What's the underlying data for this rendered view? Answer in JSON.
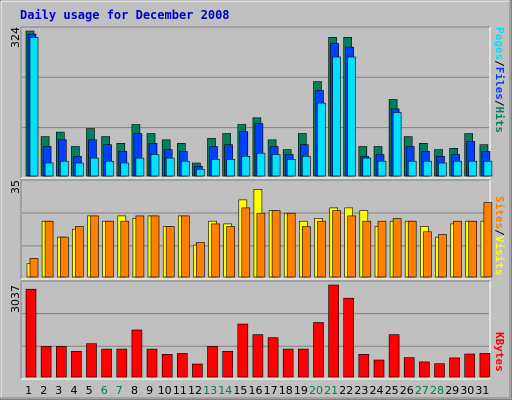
{
  "title": "Daily usage for December 2008",
  "colors": {
    "hits": "#00805c",
    "files": "#0040ff",
    "pages": "#00e0ff",
    "visits": "#ffff00",
    "sites": "#ff8000",
    "kbytes": "#ff0000",
    "weekday_label": "#000000",
    "weekend_label": "#008040",
    "panel_bg": "#c0c0c0",
    "frame_bg": "#c0c0c0"
  },
  "legend_top": {
    "pages": "Pages",
    "sep1": "/",
    "files": "Files",
    "sep2": "/",
    "hits": "Hits"
  },
  "legend_mid": {
    "sites": "Sites",
    "sep": "/",
    "visits": "Visits"
  },
  "legend_bot": {
    "kbytes": "KBytes"
  },
  "ymax_labels": {
    "top": "324",
    "mid": "35",
    "bot": "3037"
  },
  "chart_data": {
    "type": "bar",
    "categories": [
      "1",
      "2",
      "3",
      "4",
      "5",
      "6",
      "7",
      "8",
      "9",
      "10",
      "11",
      "12",
      "13",
      "14",
      "15",
      "16",
      "17",
      "18",
      "19",
      "20",
      "21",
      "22",
      "23",
      "24",
      "25",
      "26",
      "27",
      "28",
      "29",
      "30",
      "31"
    ],
    "weekend_days": [
      "6",
      "7",
      "13",
      "14",
      "20",
      "21",
      "27",
      "28"
    ],
    "panels": [
      {
        "name": "top",
        "ymax": 324,
        "series": [
          {
            "name": "Hits",
            "values": [
              324,
              88,
              98,
              66,
              106,
              88,
              73,
              115,
              95,
              81,
              73,
              29,
              84,
              95,
              115,
              130,
              81,
              59,
              95,
              211,
              310,
              310,
              66,
              66,
              171,
              88,
              73,
              59,
              62,
              95,
              70
            ]
          },
          {
            "name": "Files",
            "values": [
              317,
              66,
              81,
              44,
              81,
              70,
              55,
              95,
              73,
              59,
              55,
              22,
              66,
              70,
              99,
              117,
              66,
              48,
              70,
              191,
              296,
              288,
              44,
              48,
              150,
              66,
              55,
              44,
              48,
              77,
              55
            ]
          },
          {
            "name": "Pages",
            "values": [
              310,
              29,
              33,
              29,
              40,
              33,
              29,
              40,
              48,
              40,
              33,
              15,
              37,
              37,
              44,
              51,
              48,
              37,
              44,
              163,
              266,
              266,
              40,
              33,
              142,
              33,
              33,
              29,
              33,
              33,
              33
            ]
          }
        ]
      },
      {
        "name": "mid",
        "ymax": 35,
        "series": [
          {
            "name": "Visits",
            "values": [
              5,
              21,
              15,
              18,
              23,
              21,
              23,
              22,
              23,
              19,
              23,
              12,
              21,
              20,
              29,
              33,
              25,
              24,
              21,
              22,
              26,
              26,
              25,
              19,
              21,
              21,
              19,
              15,
              20,
              21,
              21
            ]
          },
          {
            "name": "Sites",
            "values": [
              7,
              21,
              15,
              19,
              23,
              21,
              21,
              23,
              23,
              19,
              23,
              13,
              20,
              19,
              26,
              24,
              25,
              24,
              19,
              21,
              25,
              23,
              21,
              21,
              22,
              21,
              17,
              16,
              21,
              21,
              28
            ]
          }
        ]
      },
      {
        "name": "bot",
        "ymax": 3037,
        "series": [
          {
            "name": "KBytes",
            "values": [
              2900,
              1010,
              1010,
              850,
              1100,
              920,
              920,
              1550,
              920,
              750,
              780,
              430,
              1010,
              850,
              1750,
              1400,
              1300,
              920,
              920,
              1800,
              3037,
              2600,
              750,
              560,
              1400,
              640,
              500,
              440,
              630,
              760,
              780
            ]
          }
        ]
      }
    ]
  }
}
